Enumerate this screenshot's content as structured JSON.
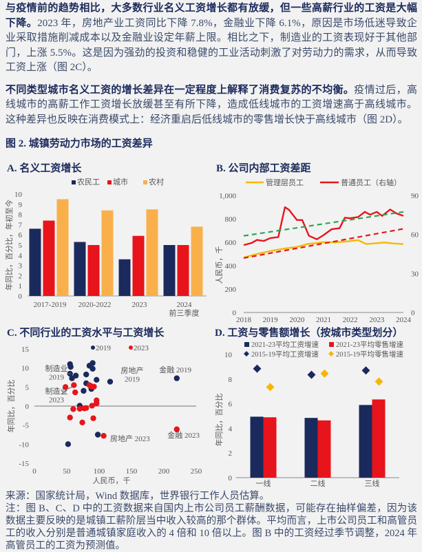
{
  "paragraphs": [
    {
      "bold": "与疫情前的趋势相比，大多数行业名义工资增长都有放缓，但一些高薪行业的工资是大幅下降。",
      "text": "2023 年，房地产业工资同比下降 7.8%，金融业下降 6.1%，原因是市场低迷导致企业采取措施削减成本以及金融业设定年薪上限。相比之下，制造业的工资表现好于其他部门，上涨 5.5%。这是因为强劲的投资和稳健的工业活动刺激了对劳动力的需求，从而导致工资上涨（图 2C）。"
    },
    {
      "bold": "不同类型城市名义工资的增长差异在一定程度上解释了消费复苏的不均衡。",
      "text": "疫情过后，高线城市的高薪工作工资增长放缓甚至有所下降，造成低线城市的工资增速高于高线城市。这种差异也反映在消费模式上：经济重启后低线城市的零售增长快于高线城市（图 2D）。"
    }
  ],
  "figure_title": "图 2. 城镇劳动力市场的工资差异",
  "colors": {
    "navy": "#1b2a5c",
    "red": "#e8141b",
    "orange": "#f9b04a",
    "yellow": "#f5b800",
    "green": "#2ea44f"
  },
  "chart_data": [
    {
      "id": "A",
      "type": "bar",
      "title": "A. 名义工资增长",
      "ylabel": "年同比，百分比，年初至今",
      "ylim": [
        0,
        10
      ],
      "yticks": [
        0,
        1,
        2,
        3,
        4,
        5,
        6,
        7,
        8,
        9,
        10
      ],
      "categories": [
        "2017-2019",
        "2020-2022",
        "2023",
        "2024\n前三季度"
      ],
      "series": [
        {
          "name": "农民工",
          "values": [
            6.6,
            5.3,
            3.6,
            5.0
          ]
        },
        {
          "name": "城市",
          "values": [
            7.4,
            5.0,
            5.9,
            5.0
          ]
        },
        {
          "name": "农村",
          "values": [
            9.5,
            8.4,
            8.5,
            6.8
          ]
        }
      ],
      "legend": "top"
    },
    {
      "id": "B",
      "type": "line",
      "title": "B. 公司内部工资差距",
      "ylabel": "人民币，千",
      "ylim": [
        0,
        1000
      ],
      "yticks": [
        "0",
        "200",
        "400",
        "600",
        "800",
        "1,000"
      ],
      "y2lim": [
        0,
        90
      ],
      "y2ticks": [
        "0",
        "30",
        "60",
        "90"
      ],
      "xticks": [
        "2018",
        "2019",
        "2020",
        "2021",
        "2022",
        "2023",
        "2024"
      ],
      "series": [
        {
          "name": "管理层员工",
          "axis": "left",
          "x": [
            2018,
            2018.5,
            2019,
            2019.5,
            2020,
            2020.4,
            2021,
            2021.5,
            2022,
            2022.3,
            2022.6,
            2023,
            2023.3,
            2023.6,
            2024
          ],
          "y": [
            470,
            500,
            525,
            545,
            560,
            585,
            600,
            600,
            610,
            618,
            585,
            592,
            598,
            590,
            585
          ]
        },
        {
          "name": "普通员工（右轴）",
          "axis": "right",
          "x": [
            2018,
            2018.3,
            2018.5,
            2018.75,
            2019,
            2019.3,
            2019.55,
            2019.7,
            2020,
            2020.2,
            2020.45,
            2020.75,
            2021,
            2021.3,
            2021.6,
            2021.8,
            2022,
            2022.3,
            2022.55,
            2022.75,
            2023,
            2023.2,
            2023.5,
            2023.75,
            2024
          ],
          "y": [
            51.8,
            53.5,
            55.8,
            55.0,
            57.2,
            58.0,
            81.0,
            79.0,
            71.1,
            71.1,
            59.0,
            56.3,
            59.5,
            64.0,
            64.8,
            72.9,
            72.5,
            73.4,
            77.4,
            75.2,
            77.4,
            74.3,
            79.2,
            76.1,
            74.3
          ]
        },
        {
          "axis": "left",
          "style": "dashed",
          "color": "green",
          "x": [
            2018,
            2024
          ],
          "y": [
            655,
            860
          ]
        },
        {
          "axis": "left",
          "style": "dashed",
          "color": "red",
          "x": [
            2018,
            2024
          ],
          "y": [
            465,
            715
          ]
        }
      ],
      "legend": "top"
    },
    {
      "id": "C",
      "type": "scatter",
      "title": "C. 不同行业的工资水平与工资增长",
      "xlabel": "人民币，千",
      "ylabel": "年同比，百分比",
      "xlim": [
        0,
        250
      ],
      "ylim": [
        -15,
        15
      ],
      "xticks": [
        0,
        50,
        100,
        150,
        200,
        250
      ],
      "yticks": [
        15,
        10,
        5,
        0,
        -5,
        -10,
        -15
      ],
      "series": [
        {
          "name": "2019",
          "points": [
            [
              55,
              11
            ],
            [
              56,
              10.3
            ],
            [
              55,
              8.5
            ],
            [
              58,
              7.3
            ],
            [
              64,
              8
            ],
            [
              70,
              0.1
            ],
            [
              76,
              4
            ],
            [
              80,
              8.3
            ],
            [
              80,
              6
            ],
            [
              85,
              10.6
            ],
            [
              90,
              11.3
            ],
            [
              90,
              9.8
            ],
            [
              88,
              4.5
            ],
            [
              96,
              6.9
            ],
            [
              117,
              6.4
            ],
            [
              220,
              7.3
            ],
            [
              98,
              -7.5
            ],
            [
              52,
              -10
            ]
          ]
        },
        {
          "name": "2023",
          "points": [
            [
              48,
              5
            ],
            [
              61,
              5.5
            ],
            [
              63,
              3.6
            ],
            [
              85,
              5.5
            ],
            [
              88,
              5.2
            ],
            [
              92,
              5.1
            ],
            [
              96,
              1.5
            ],
            [
              96,
              0.7
            ],
            [
              89,
              0.1
            ],
            [
              60,
              -0.8
            ],
            [
              70,
              -0.7
            ],
            [
              77,
              -0.6
            ],
            [
              80,
              -0.5
            ],
            [
              55,
              -3
            ],
            [
              91,
              -3.2
            ],
            [
              74,
              -4.3
            ],
            [
              107,
              -7.8
            ],
            [
              220,
              -6.1
            ]
          ]
        }
      ],
      "annotations": [
        "制造业\n2019",
        "制造业\n2023",
        "房地产\n2019",
        "金融 2019",
        "房地产 2023",
        "金融 2023"
      ],
      "legend": "top"
    },
    {
      "id": "D",
      "type": "bar",
      "title": "D. 工资与零售额增长（按城市类型划分）",
      "ylabel": "年同比，百分比",
      "ylim": [
        0,
        10
      ],
      "yticks": [
        0,
        2,
        4,
        6,
        8,
        10
      ],
      "categories": [
        "一线",
        "二线",
        "三线"
      ],
      "series": [
        {
          "name": "2021-23平均工资增速",
          "values": [
            4.95,
            4.85,
            5.9
          ]
        },
        {
          "name": "2021-23平均零售增速",
          "values": [
            4.9,
            4.65,
            6.35
          ]
        },
        {
          "name": "2015-19平均工资增速",
          "values": [
            8.85,
            8.35,
            8.7
          ],
          "marker": "diamond"
        },
        {
          "name": "2015-19平均零售增速",
          "values": [
            7.35,
            8.45,
            7.8
          ],
          "marker": "diamond"
        }
      ],
      "legend": "top"
    }
  ],
  "footer": {
    "source": "来源：国家统计局，Wind 数据库，世界银行工作人员估算。",
    "note": "注：图 B、C、D 中的工资数据来自国内上市公司员工薪酬数据，可能存在抽样偏差，因为该数据主要反映的是城镇工薪阶层当中收入较高的那个群体。平均而言，上市公司员工和高管员工的收入分别是普通城镇家庭收入的 4 倍和 10 倍以上。图 B 中的工资经过季节调整，2024 年高管员工的工资为预测值。"
  }
}
